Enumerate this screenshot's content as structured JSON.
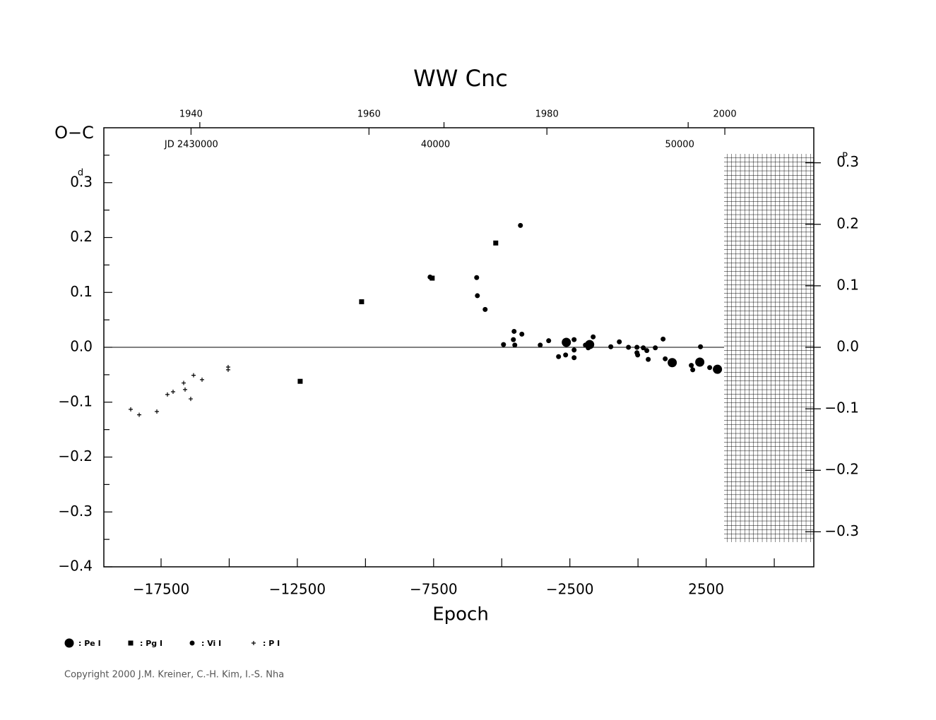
{
  "chart_data": {
    "type": "scatter",
    "title": "WW  Cnc",
    "y_label": "O−C",
    "y_unit": "d",
    "y2_unit": "P",
    "x_label": "Epoch",
    "xlim": [
      -19600,
      6450
    ],
    "xticks": [
      {
        "value": -17500,
        "label": "−17500"
      },
      {
        "value": -12500,
        "label": "−12500"
      },
      {
        "value": -7500,
        "label": "−7500"
      },
      {
        "value": -2500,
        "label": "−2500"
      },
      2500
    ],
    "xminor_ticks": [
      -15000,
      -10000,
      -5000,
      0,
      5000
    ],
    "ylim": [
      -0.4,
      0.4
    ],
    "yticks": [
      {
        "value": -0.4,
        "label": "−0.4"
      },
      {
        "value": -0.3,
        "label": "−0.3"
      },
      {
        "value": -0.2,
        "label": "−0.2"
      },
      {
        "value": -0.1,
        "label": "−0.1"
      },
      {
        "value": 0,
        "label": "0.0"
      },
      0.1,
      0.2,
      0.3
    ],
    "yminor_ticks": [
      -0.35,
      -0.25,
      -0.15,
      -0.05,
      0.05,
      0.15,
      0.25,
      0.35
    ],
    "y2lim": [
      -0.357,
      0.357
    ],
    "y2ticks": [
      {
        "value": -0.3,
        "label": "−0.3"
      },
      {
        "value": -0.2,
        "label": "−0.2"
      },
      {
        "value": -0.1,
        "label": "−0.1"
      },
      {
        "value": 0,
        "label": "0.0"
      },
      0.1,
      0.2,
      0.3
    ],
    "top_year_lim": [
      1930.2,
      2010
    ],
    "top_year_ticks": [
      1940,
      1960,
      1980,
      2000
    ],
    "top_jd_lim": [
      2426069,
      2455145
    ],
    "top_jd_ticks": [
      {
        "value": 2430000,
        "label": "JD 2430000"
      },
      {
        "value": 2440000,
        "label": "40000"
      },
      {
        "value": 2450000,
        "label": "50000"
      }
    ],
    "series": [
      {
        "name": ": Pe I",
        "marker": "big-circle",
        "color": "#000000",
        "x": [
          -2630,
          -1775,
          1256,
          2267,
          2915
        ],
        "values": [
          0.009,
          0.005,
          -0.028,
          -0.027,
          -0.04
        ]
      },
      {
        "name": ": Pg I",
        "marker": "square",
        "color": "#000000",
        "x": [
          -12396,
          -10142,
          -7552,
          -5220
        ],
        "values": [
          -0.062,
          0.083,
          0.126,
          0.19
        ]
      },
      {
        "name": ": Vi I",
        "marker": "circle",
        "color": "#000000",
        "x": [
          -7630,
          -5920,
          -5894,
          -5609,
          -4314,
          -4935,
          -4547,
          -4573,
          -4521,
          -4262,
          -3588,
          -3278,
          -2915,
          -2656,
          -2345,
          -2345,
          -2345,
          -1930,
          -1827,
          -1646,
          -998,
          -686,
          -350,
          -39,
          -39,
          -13,
          194,
          323,
          375,
          635,
          920,
          998,
          1956,
          2008,
          2293,
          2630
        ],
        "values": [
          0.128,
          0.127,
          0.094,
          0.069,
          0.222,
          0.005,
          0.029,
          0.014,
          0.004,
          0.024,
          0.004,
          0.012,
          -0.017,
          -0.014,
          0.014,
          -0.005,
          -0.019,
          0.004,
          -0.001,
          0.019,
          0.001,
          0.01,
          0,
          0,
          -0.01,
          -0.014,
          -0.001,
          -0.006,
          -0.022,
          -0.001,
          0.015,
          -0.021,
          -0.033,
          -0.041,
          0.001,
          -0.037
        ]
      },
      {
        "name": ": P I",
        "marker": "plus",
        "color": "#000000",
        "x": [
          -18614,
          -18303,
          -17655,
          -17267,
          -17060,
          -16671,
          -16619,
          -16412,
          -16308,
          -15997,
          -15039,
          -15039
        ],
        "values": [
          -0.113,
          -0.123,
          -0.117,
          -0.086,
          -0.081,
          -0.065,
          -0.077,
          -0.094,
          -0.051,
          -0.059,
          -0.041,
          -0.036
        ]
      }
    ],
    "zero_line": true,
    "copyright": "Copyright 2000 J.M. Kreiner, C.-H. Kim, I.-S. Nha"
  }
}
